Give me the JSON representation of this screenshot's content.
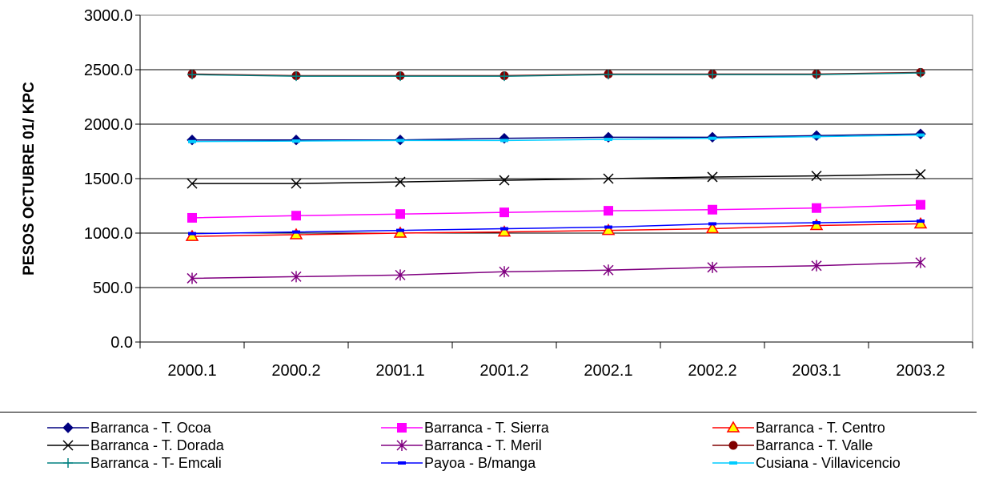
{
  "chart_data": {
    "type": "line",
    "title": "",
    "xlabel": "",
    "ylabel": "PESOS OCTUBRE 01/ KPC",
    "ylim": [
      0,
      3000
    ],
    "y_ticks": [
      "0.0",
      "500.0",
      "1000.0",
      "1500.0",
      "2000.0",
      "2500.0",
      "3000.0"
    ],
    "grid": "horizontal",
    "legend_position": "bottom",
    "categories": [
      "2000.1",
      "2000.2",
      "2001.1",
      "2001.2",
      "2002.1",
      "2002.2",
      "2003.1",
      "2003.2"
    ],
    "series": [
      {
        "name": "Barranca - T. Ocoa",
        "color": "#000080",
        "marker": "diamond",
        "values": [
          1855,
          1855,
          1855,
          1870,
          1880,
          1880,
          1895,
          1910
        ]
      },
      {
        "name": "Barranca - T. Sierra",
        "color": "#FF00FF",
        "marker": "square",
        "values": [
          1140,
          1160,
          1175,
          1190,
          1205,
          1215,
          1230,
          1260
        ]
      },
      {
        "name": "Barranca - T. Centro",
        "color": "#FF0000",
        "marker": "triangle",
        "values": [
          970,
          985,
          1000,
          1010,
          1025,
          1040,
          1070,
          1085
        ]
      },
      {
        "name": "Barranca - T. Dorada",
        "color": "#000000",
        "marker": "x",
        "values": [
          1455,
          1455,
          1470,
          1485,
          1500,
          1515,
          1525,
          1540
        ]
      },
      {
        "name": "Barranca - T. Meril",
        "color": "#800080",
        "marker": "star",
        "values": [
          585,
          600,
          615,
          645,
          660,
          685,
          700,
          730
        ]
      },
      {
        "name": "Barranca - T. Valle",
        "color": "#800000",
        "marker": "circle",
        "values": [
          2460,
          2445,
          2445,
          2445,
          2460,
          2460,
          2460,
          2475
        ]
      },
      {
        "name": "Barranca - T- Emcali",
        "color": "#008080",
        "marker": "plus",
        "values": [
          2455,
          2440,
          2440,
          2440,
          2455,
          2455,
          2455,
          2470
        ]
      },
      {
        "name": "Payoa - B/manga",
        "color": "#0000FF",
        "marker": "dash",
        "values": [
          995,
          1010,
          1025,
          1040,
          1055,
          1085,
          1095,
          1110
        ]
      },
      {
        "name": "Cusiana - Villavicencio",
        "color": "#00CCFF",
        "marker": "dash",
        "values": [
          1840,
          1845,
          1850,
          1850,
          1860,
          1870,
          1885,
          1900
        ]
      }
    ]
  }
}
